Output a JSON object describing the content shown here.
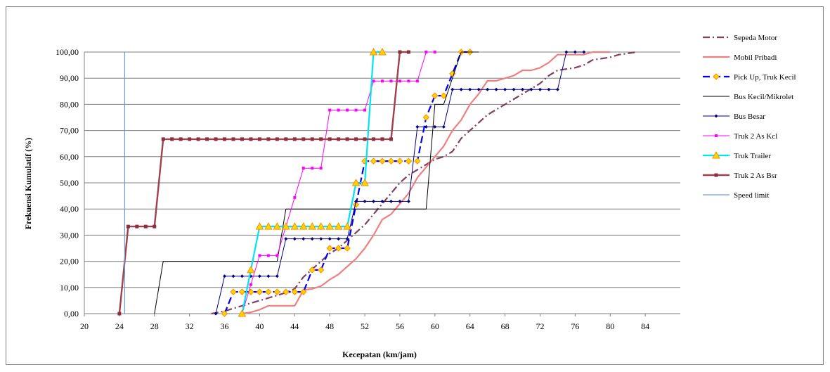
{
  "chart_data": {
    "type": "line",
    "title": "",
    "xlabel": "Kecepatan (km/jam)",
    "ylabel": "Frekuensi Kumulatif (%)",
    "xlim": [
      20,
      88
    ],
    "ylim": [
      0,
      100
    ],
    "x_ticks": [
      "20",
      "24",
      "28",
      "32",
      "36",
      "40",
      "44",
      "48",
      "52",
      "56",
      "60",
      "64",
      "68",
      "72",
      "76",
      "80",
      "84"
    ],
    "y_ticks": [
      "0,00",
      "10,00",
      "20,00",
      "30,00",
      "40,00",
      "50,00",
      "60,00",
      "70,00",
      "80,00",
      "90,00",
      "100,00"
    ],
    "grid": "horizontal",
    "legend_position": "right",
    "series": [
      {
        "name": "Sepeda Motor",
        "color": "#7f3f5f",
        "dash": "10,4,2,4",
        "width": 2.2,
        "marker": "none",
        "x": [
          34.5,
          35,
          36,
          37,
          38,
          39,
          40,
          41,
          42,
          43,
          44,
          45,
          46,
          47,
          48,
          49,
          50,
          51,
          52,
          53,
          54,
          55,
          56,
          57,
          58,
          59,
          60,
          61,
          62,
          63,
          64,
          65,
          66,
          67,
          68,
          69,
          70,
          71,
          72,
          73,
          74,
          75,
          76,
          77,
          78,
          79,
          80,
          81,
          82,
          83
        ],
        "y": [
          0,
          0.3,
          1,
          2,
          3,
          4,
          5,
          6,
          7,
          8,
          9.5,
          14,
          17,
          20,
          23,
          25,
          28,
          31,
          34,
          38,
          42,
          46,
          50,
          53,
          55,
          57,
          59,
          60,
          62,
          67,
          70,
          73,
          76,
          78,
          80,
          82,
          84,
          86,
          88,
          91,
          93,
          93.5,
          94,
          95,
          97,
          97.5,
          98,
          99,
          99.5,
          100
        ]
      },
      {
        "name": "Mobil Pribadi",
        "color": "#f08080",
        "dash": "",
        "width": 2.2,
        "marker": "none",
        "x": [
          38,
          39,
          40,
          41,
          42,
          43,
          44,
          45,
          46,
          47,
          48,
          49,
          50,
          51,
          52,
          53,
          54,
          55,
          56,
          57,
          58,
          59,
          60,
          61,
          62,
          63,
          64,
          65,
          66,
          67,
          68,
          69,
          70,
          71,
          72,
          73,
          74,
          75,
          76,
          77,
          78,
          79,
          80
        ],
        "y": [
          0,
          0.5,
          1.5,
          3,
          3,
          3,
          3,
          9,
          9.5,
          10.5,
          13,
          15,
          18,
          21,
          25,
          30,
          36,
          38,
          42,
          46,
          52,
          56,
          60,
          64,
          70,
          74,
          80,
          84,
          89,
          89,
          90,
          91,
          93,
          93,
          94,
          96,
          99,
          99,
          99,
          99,
          100,
          100,
          100
        ]
      },
      {
        "name": "Pick Up, Truk Kecil",
        "color": "#0000ee",
        "dash": "10,5",
        "width": 2.2,
        "marker": "diamond-orange",
        "x": [
          36,
          37,
          38,
          39,
          40,
          41,
          42,
          43,
          44,
          45,
          46,
          47,
          48,
          49,
          50,
          51,
          52,
          53,
          54,
          55,
          56,
          57,
          58,
          59,
          60,
          61,
          62,
          63,
          64
        ],
        "y": [
          0,
          8.3,
          8.3,
          8.3,
          8.3,
          8.3,
          8.3,
          8.3,
          8.3,
          8.3,
          16.7,
          16.7,
          25,
          25,
          25,
          41.7,
          58.3,
          58.3,
          58.3,
          58.3,
          58.3,
          58.3,
          58.3,
          75,
          83.3,
          83.3,
          91.7,
          100,
          100
        ]
      },
      {
        "name": "Bus Kecil/Mikrolet",
        "color": "#000000",
        "dash": "",
        "width": 1,
        "marker": "none",
        "x": [
          28,
          29,
          42,
          43,
          59,
          60,
          61,
          63,
          64,
          65
        ],
        "y": [
          0,
          20,
          20,
          40,
          40,
          80,
          80,
          100,
          100,
          100
        ]
      },
      {
        "name": "Bus Besar",
        "color": "#000080",
        "dash": "",
        "width": 1,
        "marker": "dot",
        "x": [
          35,
          36,
          37,
          38,
          39,
          40,
          41,
          42,
          43,
          44,
          45,
          46,
          47,
          48,
          49,
          50,
          51,
          52,
          53,
          54,
          55,
          56,
          57,
          58,
          59,
          60,
          61,
          62,
          63,
          64,
          65,
          66,
          67,
          68,
          69,
          70,
          71,
          72,
          73,
          74,
          75,
          76,
          77
        ],
        "y": [
          0,
          14.3,
          14.3,
          14.3,
          14.3,
          14.3,
          14.3,
          14.3,
          28.6,
          28.6,
          28.6,
          28.6,
          28.6,
          28.6,
          28.6,
          28.6,
          42.9,
          42.9,
          42.9,
          42.9,
          42.9,
          42.9,
          42.9,
          71.4,
          71.4,
          71.4,
          71.4,
          85.7,
          85.7,
          85.7,
          85.7,
          85.7,
          85.7,
          85.7,
          85.7,
          85.7,
          85.7,
          85.7,
          85.7,
          85.7,
          100,
          100,
          100
        ]
      },
      {
        "name": "Truk 2 As Kcl",
        "color": "#ff00ff",
        "dash": "",
        "width": 1,
        "marker": "square-small",
        "x": [
          38,
          39,
          40,
          41,
          42,
          43,
          44,
          45,
          46,
          47,
          48,
          49,
          50,
          51,
          52,
          53,
          54,
          55,
          56,
          57,
          58,
          59,
          60
        ],
        "y": [
          0,
          11.1,
          22.2,
          22.2,
          22.2,
          33.3,
          44.4,
          55.6,
          55.6,
          55.6,
          77.8,
          77.8,
          77.8,
          77.8,
          77.8,
          88.9,
          88.9,
          88.9,
          88.9,
          88.9,
          88.9,
          100,
          100
        ]
      },
      {
        "name": "Truk Trailer",
        "color": "#00e5ee",
        "dash": "",
        "width": 2.2,
        "marker": "triangle-orange",
        "x": [
          38,
          39,
          40,
          41,
          42,
          43,
          44,
          45,
          46,
          47,
          48,
          49,
          50,
          51,
          52,
          53,
          54
        ],
        "y": [
          0,
          16.7,
          33.3,
          33.3,
          33.3,
          33.3,
          33.3,
          33.3,
          33.3,
          33.3,
          33.3,
          33.3,
          33.3,
          50,
          50,
          100,
          100
        ]
      },
      {
        "name": "Truk 2 As Bsr",
        "color": "#a0404a",
        "dash": "",
        "width": 2.4,
        "marker": "square-dark",
        "x": [
          24,
          25,
          26,
          27,
          28,
          29,
          30,
          31,
          32,
          33,
          34,
          35,
          36,
          37,
          38,
          39,
          40,
          41,
          42,
          43,
          44,
          45,
          46,
          47,
          48,
          49,
          50,
          51,
          52,
          53,
          54,
          55,
          56,
          57
        ],
        "y": [
          0,
          33.3,
          33.3,
          33.3,
          33.3,
          66.7,
          66.7,
          66.7,
          66.7,
          66.7,
          66.7,
          66.7,
          66.7,
          66.7,
          66.7,
          66.7,
          66.7,
          66.7,
          66.7,
          66.7,
          66.7,
          66.7,
          66.7,
          66.7,
          66.7,
          66.7,
          66.7,
          66.7,
          66.7,
          66.7,
          66.7,
          66.7,
          100,
          100
        ]
      },
      {
        "name": "Speed limit",
        "color": "#6f9fcf",
        "dash": "",
        "width": 1.2,
        "marker": "none",
        "x": [
          24.6,
          24.6
        ],
        "y": [
          0,
          100
        ]
      }
    ]
  }
}
